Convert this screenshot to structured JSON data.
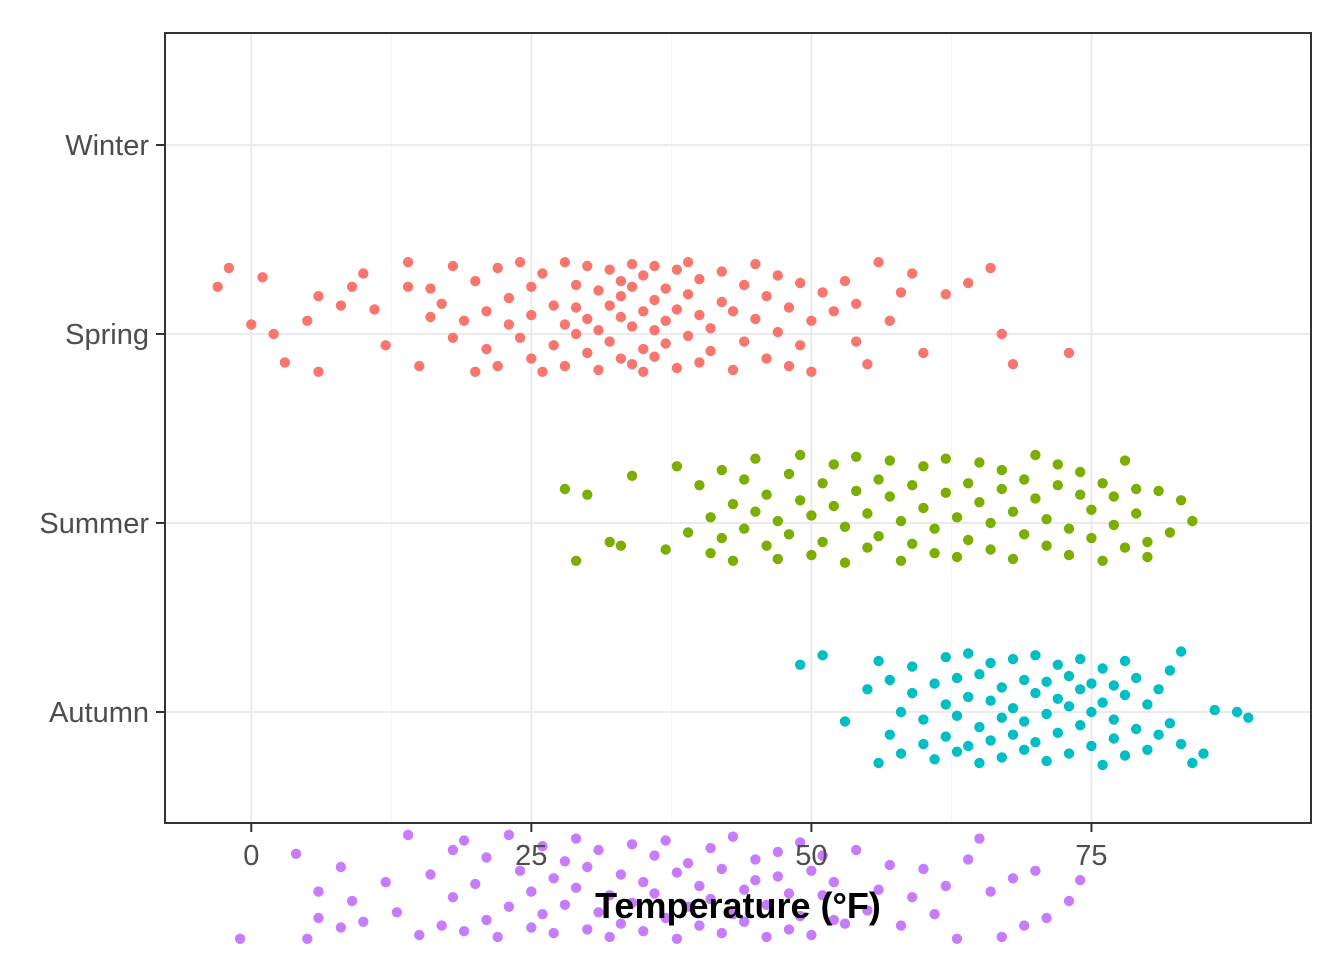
{
  "chart_data": {
    "type": "scatter",
    "title": "",
    "xlabel": "Temperature (°F)",
    "ylabel": "",
    "xlim": [
      -7.7,
      94.6
    ],
    "x_ticks": [
      0,
      25,
      50,
      75
    ],
    "x_tick_labels": [
      "0",
      "25",
      "50",
      "75"
    ],
    "categories": [
      "Winter",
      "Spring",
      "Summer",
      "Autumn"
    ],
    "grid": true,
    "legend": "none",
    "jitter": "vertical",
    "series": [
      {
        "category": "Winter",
        "color": "#F8766D",
        "x": [
          -3,
          -2,
          0,
          1,
          2,
          3,
          5,
          6,
          6,
          8,
          9,
          10,
          11,
          12,
          14,
          14,
          15,
          16,
          16,
          17,
          18,
          18,
          19,
          20,
          20,
          21,
          21,
          22,
          22,
          23,
          23,
          24,
          24,
          25,
          25,
          25,
          26,
          26,
          27,
          27,
          28,
          28,
          28,
          29,
          29,
          29,
          30,
          30,
          30,
          31,
          31,
          31,
          32,
          32,
          32,
          33,
          33,
          33,
          33,
          34,
          34,
          34,
          34,
          35,
          35,
          35,
          35,
          36,
          36,
          36,
          36,
          37,
          37,
          37,
          38,
          38,
          38,
          39,
          39,
          39,
          40,
          40,
          40,
          41,
          41,
          42,
          42,
          43,
          43,
          44,
          44,
          45,
          45,
          46,
          46,
          47,
          47,
          48,
          48,
          49,
          49,
          50,
          50,
          51,
          52,
          53,
          54,
          54,
          55,
          56,
          57,
          58,
          59,
          60,
          62,
          64,
          66,
          67,
          68,
          73
        ],
        "y": [
          0.75,
          0.65,
          0.95,
          0.7,
          1.0,
          1.15,
          0.93,
          1.2,
          0.8,
          0.85,
          0.75,
          0.68,
          0.87,
          1.06,
          0.75,
          0.62,
          1.17,
          0.91,
          0.76,
          0.84,
          1.02,
          0.64,
          0.93,
          1.2,
          0.72,
          1.08,
          0.88,
          0.65,
          1.17,
          0.81,
          0.95,
          0.62,
          1.02,
          0.75,
          1.13,
          0.9,
          0.68,
          1.2,
          0.85,
          1.06,
          0.62,
          0.95,
          1.17,
          0.74,
          1.0,
          0.86,
          0.64,
          1.1,
          0.92,
          0.77,
          1.19,
          0.98,
          0.66,
          1.04,
          0.85,
          0.72,
          0.91,
          1.13,
          0.8,
          0.63,
          0.96,
          1.16,
          0.75,
          0.88,
          1.08,
          0.69,
          1.2,
          0.82,
          0.98,
          0.64,
          1.12,
          0.76,
          0.93,
          1.05,
          0.87,
          0.66,
          1.18,
          0.79,
          1.01,
          0.62,
          0.9,
          1.15,
          0.71,
          0.97,
          1.09,
          0.83,
          0.67,
          1.19,
          0.88,
          0.74,
          1.04,
          0.92,
          0.63,
          1.13,
          0.8,
          0.99,
          0.69,
          1.17,
          0.86,
          0.73,
          1.06,
          0.93,
          1.2,
          0.78,
          0.88,
          0.72,
          1.04,
          0.84,
          1.16,
          0.62,
          0.93,
          0.78,
          0.68,
          1.1,
          0.79,
          0.73,
          0.65,
          1.0,
          1.16,
          1.1
        ],
        "radius": 5.2
      },
      {
        "category": "Spring",
        "color": "#7CAE00",
        "x": [
          28,
          29,
          30,
          32,
          33,
          34,
          37,
          38,
          39,
          40,
          41,
          41,
          42,
          42,
          43,
          43,
          44,
          44,
          45,
          45,
          46,
          46,
          47,
          47,
          48,
          48,
          49,
          49,
          50,
          50,
          51,
          51,
          52,
          52,
          53,
          53,
          54,
          54,
          55,
          55,
          56,
          56,
          57,
          57,
          58,
          58,
          59,
          59,
          60,
          60,
          61,
          61,
          62,
          62,
          63,
          63,
          64,
          64,
          65,
          65,
          66,
          66,
          67,
          67,
          68,
          68,
          69,
          69,
          70,
          70,
          71,
          71,
          72,
          72,
          73,
          73,
          74,
          74,
          75,
          75,
          76,
          76,
          77,
          77,
          78,
          78,
          79,
          79,
          80,
          80,
          81,
          82,
          83,
          84
        ],
        "y": [
          1.82,
          2.2,
          1.85,
          2.1,
          2.12,
          1.75,
          2.14,
          1.7,
          2.05,
          1.8,
          2.16,
          1.97,
          1.72,
          2.08,
          1.9,
          2.2,
          1.77,
          2.03,
          1.94,
          1.66,
          2.12,
          1.85,
          1.99,
          2.19,
          1.74,
          2.06,
          1.88,
          1.64,
          2.17,
          1.96,
          1.79,
          2.1,
          1.91,
          1.69,
          2.21,
          2.02,
          1.83,
          1.65,
          2.13,
          1.95,
          1.77,
          2.07,
          1.86,
          1.67,
          2.2,
          1.99,
          1.8,
          2.11,
          1.92,
          1.7,
          2.16,
          2.03,
          1.84,
          1.66,
          2.18,
          1.97,
          1.79,
          2.09,
          1.89,
          1.68,
          2.14,
          2.0,
          1.82,
          1.72,
          2.19,
          1.94,
          1.77,
          2.06,
          1.87,
          1.64,
          2.12,
          1.98,
          1.8,
          1.69,
          2.17,
          2.03,
          1.85,
          1.73,
          2.08,
          1.93,
          1.79,
          2.2,
          2.01,
          1.86,
          1.67,
          2.13,
          1.95,
          1.82,
          2.18,
          2.1,
          1.83,
          2.05,
          1.88,
          1.99
        ],
        "radius": 5.2
      },
      {
        "category": "Summer",
        "color": "#00BFC4",
        "x": [
          49,
          51,
          53,
          55,
          56,
          56,
          57,
          57,
          58,
          58,
          59,
          59,
          60,
          60,
          61,
          61,
          62,
          62,
          62,
          63,
          63,
          63,
          64,
          64,
          64,
          65,
          65,
          65,
          66,
          66,
          66,
          67,
          67,
          67,
          68,
          68,
          68,
          69,
          69,
          69,
          70,
          70,
          70,
          71,
          71,
          71,
          72,
          72,
          72,
          73,
          73,
          73,
          74,
          74,
          74,
          75,
          75,
          75,
          76,
          76,
          76,
          77,
          77,
          77,
          78,
          78,
          78,
          79,
          79,
          80,
          80,
          81,
          81,
          82,
          82,
          83,
          83,
          84,
          85,
          86,
          88,
          89
        ],
        "y": [
          2.75,
          2.7,
          3.05,
          2.88,
          3.27,
          2.73,
          3.12,
          2.83,
          3.0,
          3.22,
          2.9,
          2.76,
          3.17,
          3.04,
          2.85,
          3.25,
          2.71,
          2.96,
          3.13,
          2.82,
          3.21,
          3.02,
          2.92,
          2.69,
          3.18,
          3.08,
          2.8,
          3.27,
          2.94,
          2.74,
          3.15,
          3.03,
          2.87,
          3.24,
          2.72,
          2.98,
          3.12,
          2.83,
          3.2,
          3.05,
          2.9,
          2.7,
          3.16,
          3.01,
          2.84,
          3.26,
          2.93,
          2.75,
          3.11,
          2.97,
          2.81,
          3.22,
          3.07,
          2.88,
          2.72,
          3.18,
          3.0,
          2.85,
          3.28,
          2.95,
          2.77,
          3.14,
          3.04,
          2.86,
          3.23,
          2.91,
          2.73,
          3.09,
          2.82,
          3.2,
          2.96,
          2.88,
          3.12,
          3.06,
          2.78,
          2.68,
          3.17,
          3.27,
          3.22,
          2.99,
          3.0,
          3.03
        ],
        "radius": 5.2
      },
      {
        "category": "Autumn",
        "color": "#C77CFF",
        "x": [
          -1,
          4,
          5,
          6,
          6,
          8,
          8,
          9,
          10,
          12,
          13,
          14,
          15,
          16,
          17,
          18,
          18,
          19,
          19,
          20,
          21,
          21,
          22,
          23,
          23,
          24,
          25,
          25,
          26,
          26,
          27,
          27,
          28,
          28,
          29,
          29,
          30,
          30,
          31,
          31,
          32,
          32,
          33,
          33,
          34,
          34,
          35,
          35,
          36,
          36,
          37,
          37,
          38,
          38,
          39,
          39,
          40,
          40,
          41,
          41,
          42,
          42,
          43,
          43,
          44,
          44,
          45,
          45,
          46,
          46,
          47,
          47,
          48,
          48,
          49,
          49,
          50,
          50,
          51,
          51,
          52,
          52,
          53,
          54,
          55,
          56,
          57,
          58,
          59,
          60,
          61,
          62,
          63,
          64,
          65,
          66,
          67,
          68,
          69,
          70,
          71,
          73,
          74
        ],
        "y": [
          4.2,
          3.75,
          4.2,
          4.09,
          3.95,
          4.14,
          3.82,
          4.0,
          4.11,
          3.9,
          4.06,
          3.65,
          4.18,
          3.86,
          4.13,
          3.73,
          3.98,
          4.16,
          3.68,
          3.91,
          4.1,
          3.77,
          4.19,
          3.65,
          4.03,
          3.84,
          4.14,
          3.95,
          3.71,
          4.07,
          3.88,
          4.17,
          3.79,
          4.02,
          3.67,
          3.93,
          4.15,
          3.82,
          4.06,
          3.73,
          4.19,
          3.97,
          3.86,
          4.12,
          3.7,
          4.01,
          3.9,
          4.16,
          3.76,
          3.96,
          4.09,
          3.68,
          3.85,
          4.2,
          4.03,
          3.8,
          3.92,
          4.13,
          3.72,
          3.99,
          4.17,
          3.83,
          4.07,
          3.66,
          3.94,
          4.11,
          3.78,
          3.89,
          4.19,
          4.02,
          3.74,
          3.87,
          4.15,
          3.96,
          3.69,
          4.08,
          3.84,
          4.18,
          3.97,
          3.76,
          4.1,
          3.9,
          4.12,
          3.73,
          4.05,
          3.94,
          3.81,
          4.13,
          3.98,
          3.83,
          4.07,
          3.92,
          4.2,
          3.78,
          3.67,
          3.95,
          4.19,
          3.88,
          4.13,
          3.84,
          4.09,
          4.0,
          3.89
        ],
        "radius": 5.2
      }
    ]
  }
}
